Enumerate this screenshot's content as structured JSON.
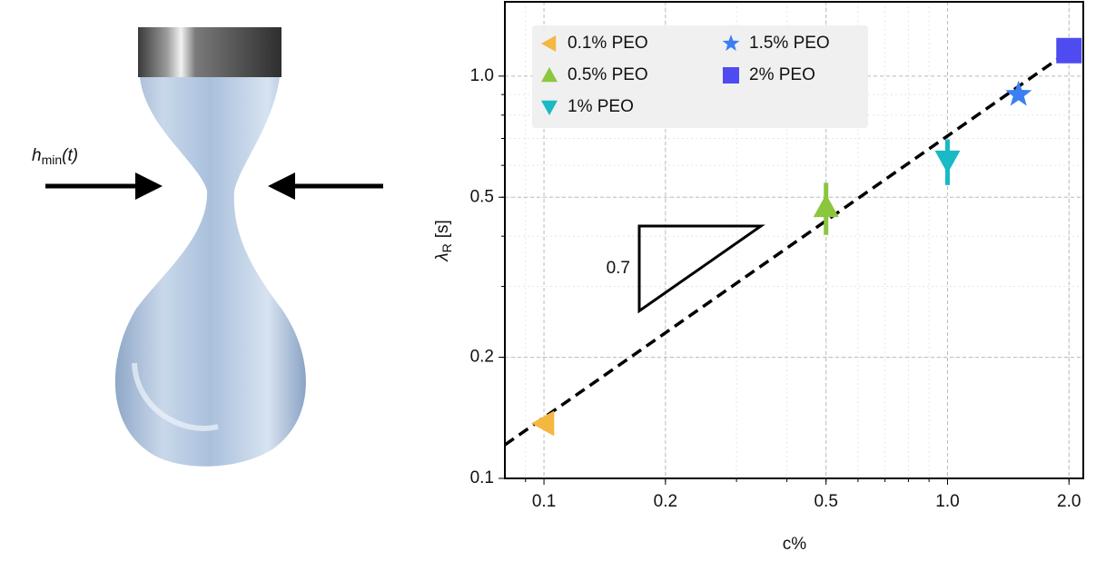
{
  "illustration": {
    "label_symbol": "h",
    "label_subscript": "min",
    "label_argument": "(t)"
  },
  "chart_data": {
    "type": "scatter",
    "xlabel": "c%",
    "ylabel": {
      "symbol": "λ",
      "subscript": "R",
      "unit": "[s]"
    },
    "xscale": "log",
    "yscale": "log",
    "xlim": [
      0.08,
      2.17
    ],
    "ylim": [
      0.1,
      1.53
    ],
    "xticks": [
      0.1,
      0.2,
      0.5,
      {
        "value": 1,
        "label": "1.0"
      },
      {
        "value": 2,
        "label": "2.0"
      }
    ],
    "yticks": [
      0.1,
      0.2,
      0.5,
      {
        "value": 1,
        "label": "1.0"
      }
    ],
    "grid": true,
    "legend": "upper left",
    "series": [
      {
        "name": "0.1% PEO",
        "color": "#f4b740",
        "marker": "triangle-left",
        "x": [
          0.1
        ],
        "values": [
          0.137
        ]
      },
      {
        "name": "0.5% PEO",
        "color": "#8cc63f",
        "marker": "triangle-up",
        "x": [
          0.5
        ],
        "values": [
          0.473
        ],
        "errors": [
          0.07
        ]
      },
      {
        "name": "1% PEO",
        "color": "#19b9c6",
        "marker": "triangle-down",
        "x": [
          1
        ],
        "values": [
          0.616
        ],
        "errors": [
          0.08
        ]
      },
      {
        "name": "1.5% PEO",
        "color": "#3b7ff2",
        "marker": "star",
        "x": [
          1.5
        ],
        "values": [
          0.9
        ]
      },
      {
        "name": "2% PEO",
        "color": "#4e4cf0",
        "marker": "square",
        "x": [
          2
        ],
        "values": [
          1.157
        ]
      }
    ],
    "fit": {
      "coefficient": 0.71,
      "exponent": 0.7,
      "color": "#000000"
    }
  }
}
